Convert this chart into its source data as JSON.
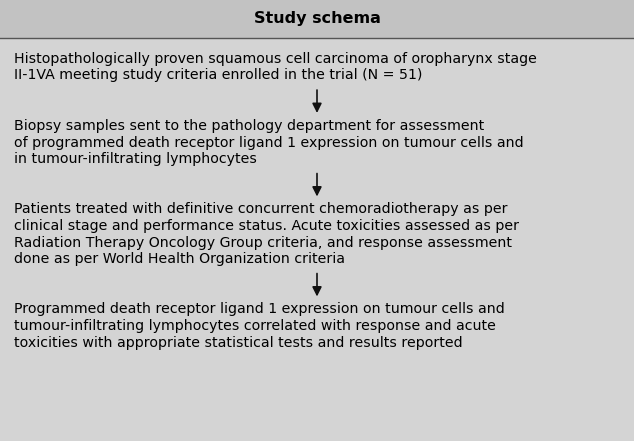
{
  "title": "Study schema",
  "background_color": "#d4d4d4",
  "header_bg": "#c2c2c2",
  "text_color": "#000000",
  "border_color": "#000000",
  "title_fontsize": 11.5,
  "body_fontsize": 10.2,
  "block1_lines": [
    "Histopathologically proven squamous cell carcinoma of oropharynx stage",
    "II-1VA meeting study criteria enrolled in the trial (N = 51)"
  ],
  "block2_lines": [
    "Biopsy samples sent to the pathology department for assessment",
    "of programmed death receptor ligand 1 expression on tumour cells and",
    "in tumour-infiltrating lymphocytes"
  ],
  "block3_lines": [
    "Patients treated with definitive concurrent chemoradiotherapy as per",
    "clinical stage and performance status. Acute toxicities assessed as per",
    "Radiation Therapy Oncology Group criteria, and response assessment",
    "done as per World Health Organization criteria"
  ],
  "block4_lines": [
    "Programmed death receptor ligand 1 expression on tumour cells and",
    "tumour-infiltrating lymphocytes correlated with response and acute",
    "toxicities with appropriate statistical tests and results reported"
  ]
}
